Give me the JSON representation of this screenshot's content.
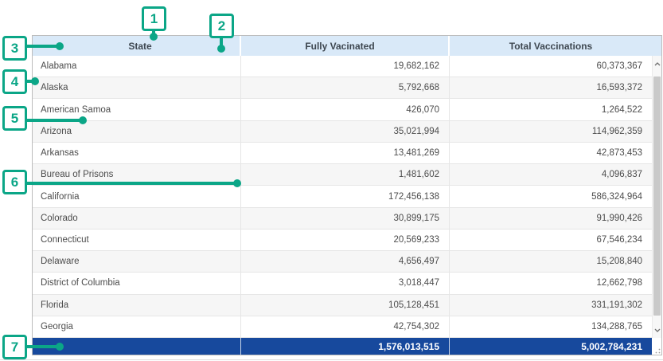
{
  "callouts": {
    "labels": [
      "1",
      "2",
      "3",
      "4",
      "5",
      "6",
      "7"
    ]
  },
  "table": {
    "columns": [
      "State",
      "Fully Vacinated",
      "Total Vaccinations"
    ],
    "rows": [
      {
        "state": "Alabama",
        "fully_vaccinated": "19,682,162",
        "total_vaccinations": "60,373,367"
      },
      {
        "state": "Alaska",
        "fully_vaccinated": "5,792,668",
        "total_vaccinations": "16,593,372"
      },
      {
        "state": "American Samoa",
        "fully_vaccinated": "426,070",
        "total_vaccinations": "1,264,522"
      },
      {
        "state": "Arizona",
        "fully_vaccinated": "35,021,994",
        "total_vaccinations": "114,962,359"
      },
      {
        "state": "Arkansas",
        "fully_vaccinated": "13,481,269",
        "total_vaccinations": "42,873,453"
      },
      {
        "state": "Bureau of Prisons",
        "fully_vaccinated": "1,481,602",
        "total_vaccinations": "4,096,837"
      },
      {
        "state": "California",
        "fully_vaccinated": "172,456,138",
        "total_vaccinations": "586,324,964"
      },
      {
        "state": "Colorado",
        "fully_vaccinated": "30,899,175",
        "total_vaccinations": "91,990,426"
      },
      {
        "state": "Connecticut",
        "fully_vaccinated": "20,569,233",
        "total_vaccinations": "67,546,234"
      },
      {
        "state": "Delaware",
        "fully_vaccinated": "4,656,497",
        "total_vaccinations": "15,208,840"
      },
      {
        "state": "District of Columbia",
        "fully_vaccinated": "3,018,447",
        "total_vaccinations": "12,662,798"
      },
      {
        "state": "Florida",
        "fully_vaccinated": "105,128,451",
        "total_vaccinations": "331,191,302"
      },
      {
        "state": "Georgia",
        "fully_vaccinated": "42,754,302",
        "total_vaccinations": "134,288,765"
      }
    ],
    "summary": {
      "fully_vaccinated": "1,576,013,515",
      "total_vaccinations": "5,002,784,231"
    }
  },
  "colors": {
    "callout_green": "#0ba687",
    "header_background": "#d9e9f8",
    "summary_background": "#17499d",
    "alt_row_background": "#f6f6f6"
  }
}
